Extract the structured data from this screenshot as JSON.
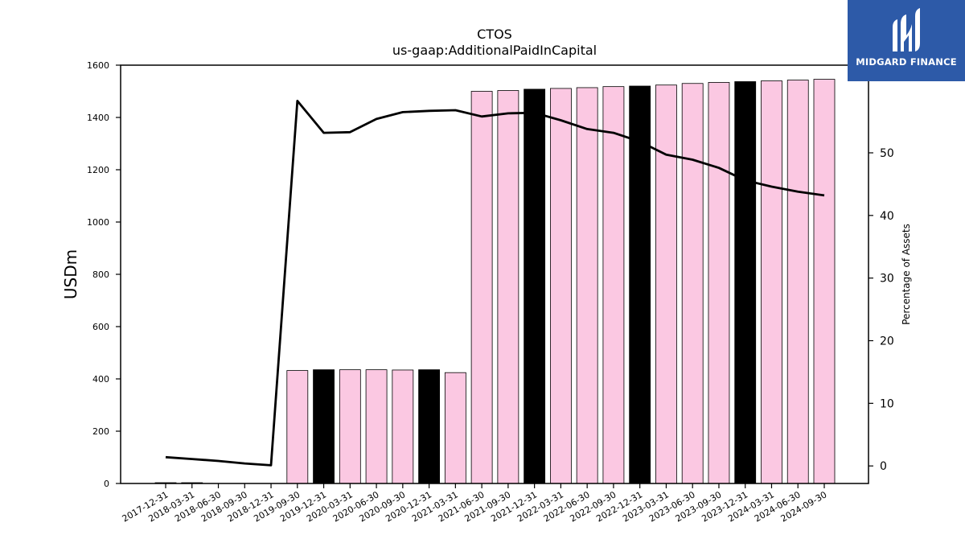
{
  "brand": {
    "name": "MIDGARD FINANCE",
    "color": "#2d5aa8"
  },
  "colors": {
    "bar_fill": "#fbc8e2",
    "bar_highlight": "#000000",
    "bar_edge": "#000000",
    "line": "#000000"
  },
  "chart_data": {
    "type": "bar",
    "title": "CTOS",
    "subtitle": "us-gaap:AdditionalPaidInCapital",
    "ylabel": "USDm",
    "y2label": "Percentage of Assets",
    "ylim": [
      0,
      1600
    ],
    "yticks": [
      0,
      200,
      400,
      600,
      800,
      1000,
      1200,
      1400,
      1600
    ],
    "y2lim": [
      -2.8,
      64
    ],
    "y2ticks": [
      0,
      10,
      20,
      30,
      40,
      50
    ],
    "grid": false,
    "categories": [
      "2017-12-31",
      "2018-03-31",
      "2018-06-30",
      "2018-09-30",
      "2018-12-31",
      "2019-09-30",
      "2019-12-31",
      "2020-03-31",
      "2020-06-30",
      "2020-09-30",
      "2020-12-31",
      "2021-03-31",
      "2021-06-30",
      "2021-09-30",
      "2021-12-31",
      "2022-03-31",
      "2022-06-30",
      "2022-09-30",
      "2022-12-31",
      "2023-03-31",
      "2023-06-30",
      "2023-09-30",
      "2023-12-31",
      "2024-03-31",
      "2024-06-30",
      "2024-09-30"
    ],
    "series": [
      {
        "kind": "bar",
        "values": [
          3,
          3,
          0,
          0,
          0,
          432,
          435,
          435,
          435,
          434,
          435,
          424,
          1500,
          1503,
          1508,
          1511,
          1514,
          1518,
          1520,
          1524,
          1530,
          1534,
          1537,
          1540,
          1543,
          1546
        ],
        "highlight": [
          true,
          true,
          false,
          false,
          false,
          false,
          true,
          false,
          false,
          false,
          true,
          false,
          false,
          false,
          true,
          false,
          false,
          false,
          true,
          false,
          false,
          false,
          true,
          false,
          false,
          false
        ]
      },
      {
        "kind": "line",
        "axis": "right",
        "values": [
          1.4,
          1.1,
          0.8,
          0.4,
          0.1,
          58.3,
          53.2,
          53.3,
          55.4,
          56.5,
          56.7,
          56.8,
          55.8,
          56.3,
          56.4,
          55.2,
          53.8,
          53.2,
          51.8,
          49.7,
          48.9,
          47.6,
          45.6,
          44.6,
          43.8,
          43.2
        ]
      }
    ]
  }
}
